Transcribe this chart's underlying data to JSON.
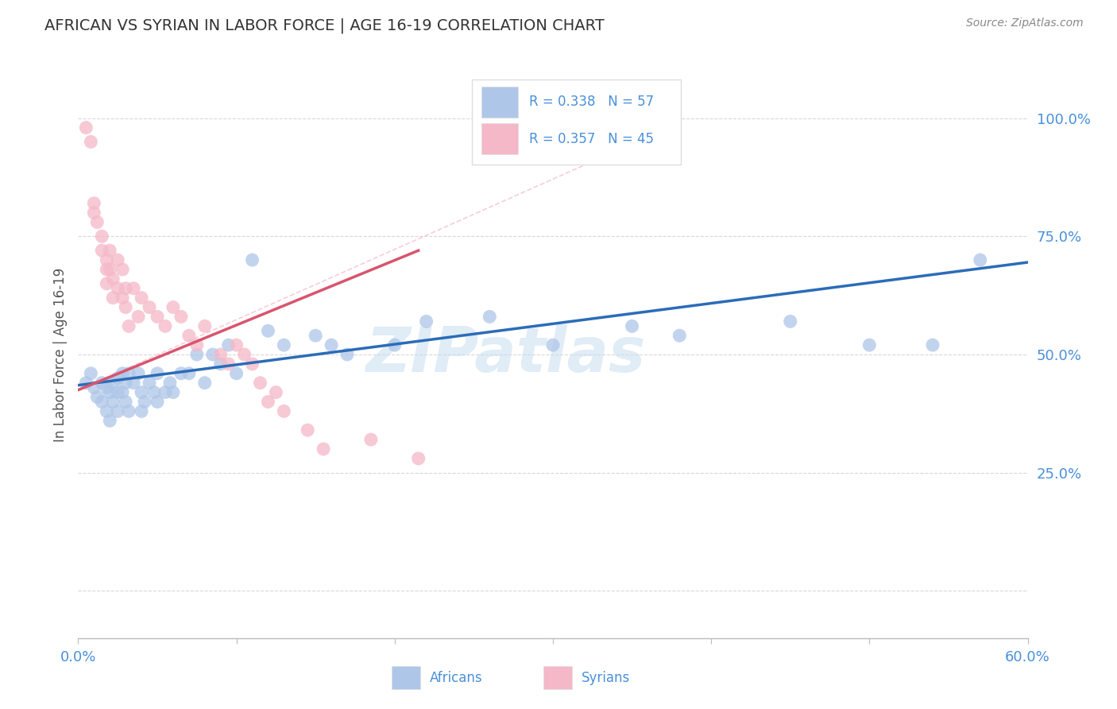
{
  "title": "AFRICAN VS SYRIAN IN LABOR FORCE | AGE 16-19 CORRELATION CHART",
  "source": "Source: ZipAtlas.com",
  "ylabel": "In Labor Force | Age 16-19",
  "xlim": [
    0.0,
    0.6
  ],
  "ylim": [
    -0.1,
    1.1
  ],
  "xticks": [
    0.0,
    0.1,
    0.2,
    0.3,
    0.4,
    0.5,
    0.6
  ],
  "xticklabels": [
    "0.0%",
    "",
    "",
    "",
    "",
    "",
    "60.0%"
  ],
  "ytick_positions": [
    0.0,
    0.25,
    0.5,
    0.75,
    1.0
  ],
  "ytick_labels": [
    "",
    "25.0%",
    "50.0%",
    "75.0%",
    "100.0%"
  ],
  "african_R": 0.338,
  "african_N": 57,
  "syrian_R": 0.357,
  "syrian_N": 45,
  "african_color": "#aec6e8",
  "syrian_color": "#f5b8c8",
  "african_line_color": "#2b6cb8",
  "syrian_line_color": "#d9546e",
  "dashed_line_color": "#f5b8c8",
  "background_color": "#ffffff",
  "grid_color": "#d8d8d8",
  "watermark": "ZIPatlas",
  "watermark_color": "#c8ddef",
  "title_color": "#333333",
  "axis_label_color": "#555555",
  "tick_label_color": "#4a90d9",
  "legend_box_color": "#dddddd",
  "african_x": [
    0.005,
    0.008,
    0.01,
    0.012,
    0.015,
    0.015,
    0.018,
    0.018,
    0.02,
    0.02,
    0.022,
    0.022,
    0.025,
    0.025,
    0.025,
    0.028,
    0.028,
    0.03,
    0.03,
    0.032,
    0.032,
    0.035,
    0.038,
    0.04,
    0.04,
    0.042,
    0.045,
    0.048,
    0.05,
    0.05,
    0.055,
    0.058,
    0.06,
    0.065,
    0.07,
    0.075,
    0.08,
    0.085,
    0.09,
    0.095,
    0.1,
    0.11,
    0.12,
    0.13,
    0.15,
    0.16,
    0.17,
    0.2,
    0.22,
    0.26,
    0.3,
    0.35,
    0.38,
    0.45,
    0.5,
    0.54,
    0.57
  ],
  "african_y": [
    0.44,
    0.46,
    0.43,
    0.41,
    0.44,
    0.4,
    0.43,
    0.38,
    0.42,
    0.36,
    0.44,
    0.4,
    0.45,
    0.42,
    0.38,
    0.46,
    0.42,
    0.44,
    0.4,
    0.46,
    0.38,
    0.44,
    0.46,
    0.42,
    0.38,
    0.4,
    0.44,
    0.42,
    0.46,
    0.4,
    0.42,
    0.44,
    0.42,
    0.46,
    0.46,
    0.5,
    0.44,
    0.5,
    0.48,
    0.52,
    0.46,
    0.7,
    0.55,
    0.52,
    0.54,
    0.52,
    0.5,
    0.52,
    0.57,
    0.58,
    0.52,
    0.56,
    0.54,
    0.57,
    0.52,
    0.52,
    0.7
  ],
  "syrian_x": [
    0.005,
    0.008,
    0.01,
    0.01,
    0.012,
    0.015,
    0.015,
    0.018,
    0.018,
    0.018,
    0.02,
    0.02,
    0.022,
    0.022,
    0.025,
    0.025,
    0.028,
    0.028,
    0.03,
    0.03,
    0.032,
    0.035,
    0.038,
    0.04,
    0.045,
    0.05,
    0.055,
    0.06,
    0.065,
    0.07,
    0.075,
    0.08,
    0.09,
    0.095,
    0.1,
    0.105,
    0.11,
    0.115,
    0.12,
    0.125,
    0.13,
    0.145,
    0.155,
    0.185,
    0.215
  ],
  "syrian_y": [
    0.98,
    0.95,
    0.82,
    0.8,
    0.78,
    0.75,
    0.72,
    0.7,
    0.68,
    0.65,
    0.72,
    0.68,
    0.66,
    0.62,
    0.7,
    0.64,
    0.68,
    0.62,
    0.64,
    0.6,
    0.56,
    0.64,
    0.58,
    0.62,
    0.6,
    0.58,
    0.56,
    0.6,
    0.58,
    0.54,
    0.52,
    0.56,
    0.5,
    0.48,
    0.52,
    0.5,
    0.48,
    0.44,
    0.4,
    0.42,
    0.38,
    0.34,
    0.3,
    0.32,
    0.28
  ],
  "african_line_x": [
    0.0,
    0.6
  ],
  "african_line_y": [
    0.435,
    0.695
  ],
  "syrian_line_x": [
    0.0,
    0.215
  ],
  "syrian_line_y": [
    0.425,
    0.72
  ],
  "dashed_line_x": [
    0.0,
    0.38
  ],
  "dashed_line_y": [
    0.425,
    0.99
  ]
}
